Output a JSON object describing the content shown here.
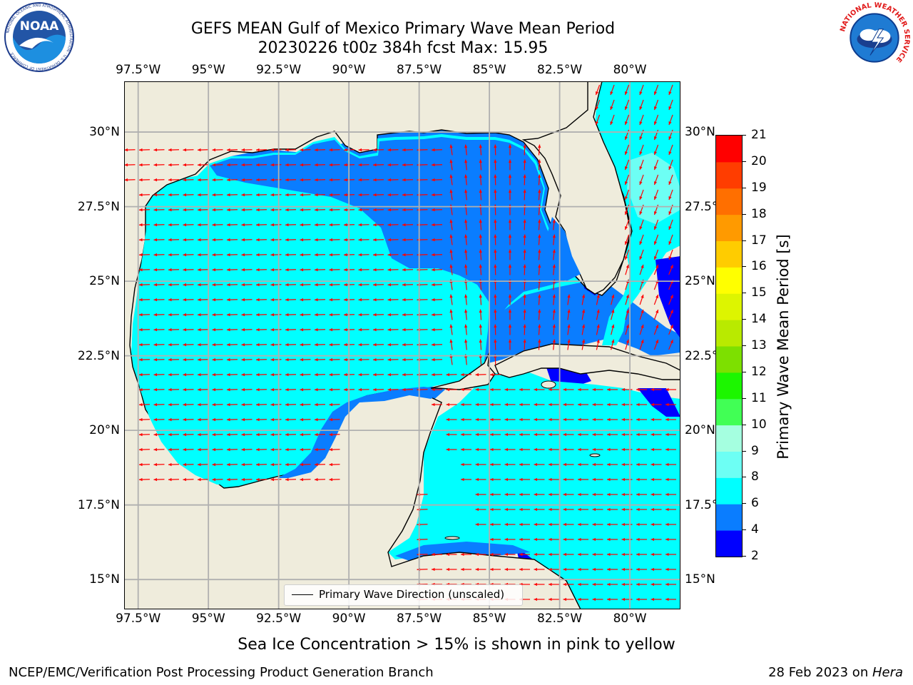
{
  "header": {
    "title_line1": "GEFS MEAN Gulf of Mexico Primary Wave Mean Period",
    "title_line2": "20230226 t00z 384h fcst   Max: 15.95"
  },
  "logos": {
    "left": {
      "name": "noaa-logo",
      "text": "NOAA",
      "ring_text": "NATIONAL OCEANIC AND ATMOSPHERIC ADMINISTRATION · U.S. DEPARTMENT OF COMMERCE"
    },
    "right": {
      "name": "nws-logo",
      "ring_text": "NATIONAL WEATHER SERVICE"
    }
  },
  "map": {
    "lon_labels": [
      "97.5°W",
      "95°W",
      "92.5°W",
      "90°W",
      "87.5°W",
      "85°W",
      "82.5°W",
      "80°W"
    ],
    "lat_labels": [
      "30°N",
      "27.5°N",
      "25°N",
      "22.5°N",
      "20°N",
      "17.5°N",
      "15°N"
    ],
    "lon_range": [
      -98,
      -78.2
    ],
    "lat_range": [
      14,
      31.7
    ],
    "colors": {
      "land": "#efecdc",
      "arrow": "#ff0000",
      "grid": "#b0b0b0",
      "coast": "#000000"
    }
  },
  "legend": {
    "label": "Primary Wave Direction (unscaled)"
  },
  "colorbar": {
    "title": "Primary Wave Mean Period [s]",
    "ticks": [
      "2",
      "4",
      "6",
      "8",
      "9",
      "10",
      "11",
      "12",
      "13",
      "14",
      "15",
      "16",
      "17",
      "18",
      "19",
      "20",
      "21"
    ],
    "colors": [
      "#0000ff",
      "#0a7dff",
      "#00ffff",
      "#6dfff4",
      "#a5ffe0",
      "#41ff55",
      "#1cf600",
      "#7de000",
      "#b9ea00",
      "#ddf500",
      "#ffff00",
      "#ffcc00",
      "#ff9a00",
      "#ff6f00",
      "#ff3d00",
      "#ff0000"
    ]
  },
  "caption": "Sea Ice Concentration > 15% is shown in pink to yellow",
  "footer": {
    "left": "NCEP/EMC/Verification Post Processing Product Generation Branch",
    "right_prefix": "28 Feb 2023 on ",
    "right_host": "Hera"
  }
}
